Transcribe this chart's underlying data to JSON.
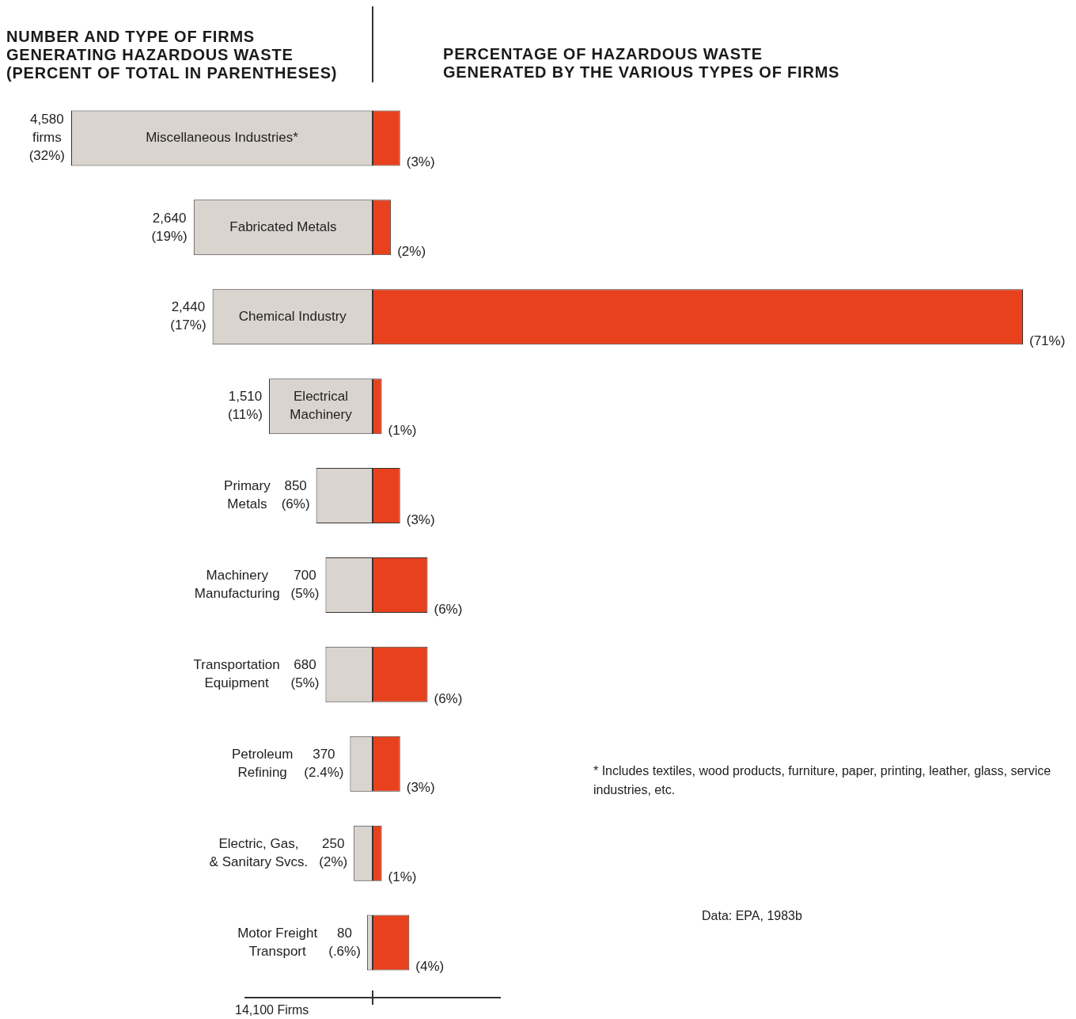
{
  "chart_data": [
    {
      "type": "bar",
      "orientation": "horizontal",
      "title": "NUMBER AND TYPE OF FIRMS GENERATING HAZARDOUS WASTE (PERCENT OF TOTAL IN PARENTHESES)",
      "xlabel": "14,100 Firms",
      "categories": [
        "Miscellaneous Industries*",
        "Fabricated Metals",
        "Chemical Industry",
        "Electrical Machinery",
        "Primary Metals",
        "Machinery Manufacturing",
        "Transportation Equipment",
        "Petroleum Refining",
        "Electric, Gas, & Sanitary Svcs.",
        "Motor Freight Transport"
      ],
      "series": [
        {
          "color": "#dad4cf",
          "values": [
            32,
            19,
            17,
            11,
            6,
            5,
            5,
            2.4,
            2,
            0.6
          ],
          "value_labels": [
            "4,580\nfirms\n(32%)",
            "2,640\n(19%)",
            "2,440\n(17%)",
            "1,510\n(11%)",
            "850\n(6%)",
            "700\n(5%)",
            "680\n(5%)",
            "370\n(2.4%)",
            "250\n(2%)",
            "80\n(.6%)"
          ]
        }
      ],
      "xlim": [
        32,
        0
      ],
      "tick_labels": "y",
      "legend": false
    },
    {
      "type": "bar",
      "orientation": "horizontal",
      "title": "PERCENTAGE OF HAZARDOUS WASTE GENERATED BY THE VARIOUS TYPES OF FIRMS",
      "categories": [
        null,
        null,
        null,
        null,
        null,
        null,
        null,
        null,
        null,
        null
      ],
      "series": [
        {
          "color": "#e8411e",
          "values": [
            3,
            2,
            71,
            1,
            3,
            6,
            6,
            3,
            1,
            4
          ],
          "value_labels": [
            "(3%)",
            "(2%)",
            "(71%)",
            "(1%)",
            "(3%)",
            "(6%)",
            "(6%)",
            "(3%)",
            "(1%)",
            "(4%)"
          ]
        }
      ],
      "xlim": [
        0,
        71
      ],
      "tick_labels": false,
      "legend": false,
      "annotations": [
        "* Includes textiles, wood products, furniture, paper, printing, leather, glass, service industries, etc.",
        "Data:  EPA, 1983b"
      ]
    }
  ]
}
